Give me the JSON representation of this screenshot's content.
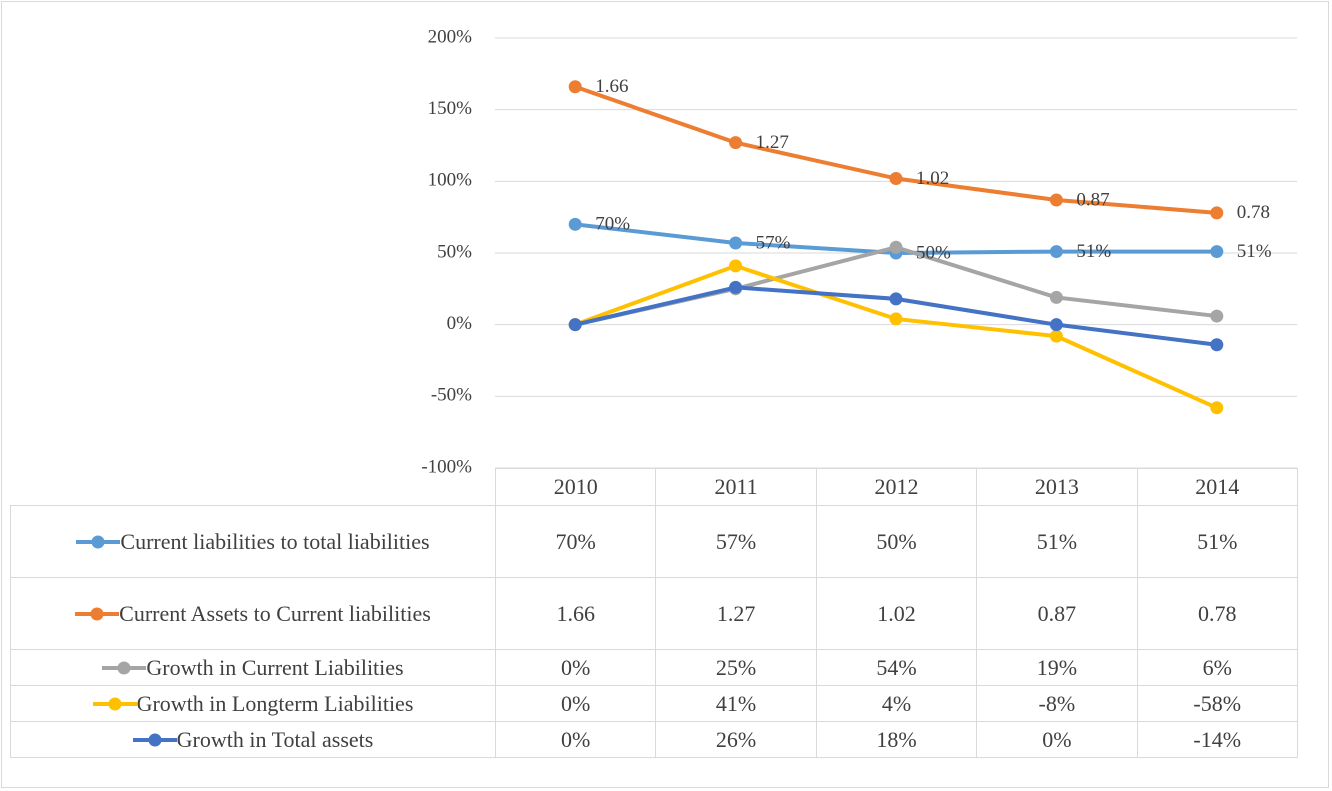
{
  "chart_data": {
    "type": "line",
    "categories": [
      "2010",
      "2011",
      "2012",
      "2013",
      "2014"
    ],
    "ylim": [
      -100,
      200
    ],
    "yticks": [
      {
        "value": -100,
        "label": "-100%"
      },
      {
        "value": -50,
        "label": "-50%"
      },
      {
        "value": 0,
        "label": "0%"
      },
      {
        "value": 50,
        "label": "50%"
      },
      {
        "value": 100,
        "label": "100%"
      },
      {
        "value": 150,
        "label": "150%"
      },
      {
        "value": 200,
        "label": "200%"
      }
    ],
    "grid": true,
    "legend": "table",
    "series": [
      {
        "name": "Current liabilities to total liabilities",
        "color": "#5b9bd5",
        "show_labels": true,
        "values": [
          70,
          57,
          50,
          51,
          51
        ],
        "value_labels": [
          "70%",
          "57%",
          "50%",
          "51%",
          "51%"
        ]
      },
      {
        "name": "Current Assets to Current liabilities",
        "color": "#ed7d31",
        "show_labels": true,
        "values": [
          166,
          127,
          102,
          87,
          78
        ],
        "value_labels": [
          "1.66",
          "1.27",
          "1.02",
          "0.87",
          "0.78"
        ]
      },
      {
        "name": "Growth in Current Liabilities",
        "color": "#a5a5a5",
        "show_labels": false,
        "values": [
          0,
          25,
          54,
          19,
          6
        ],
        "value_labels": [
          "0%",
          "25%",
          "54%",
          "19%",
          "6%"
        ]
      },
      {
        "name": "Growth in Longterm Liabilities",
        "color": "#ffc000",
        "show_labels": false,
        "values": [
          0,
          41,
          4,
          -8,
          -58
        ],
        "value_labels": [
          "0%",
          "41%",
          "4%",
          "-8%",
          "-58%"
        ]
      },
      {
        "name": "Growth in Total assets",
        "color": "#4472c4",
        "show_labels": false,
        "values": [
          0,
          26,
          18,
          0,
          -14
        ],
        "value_labels": [
          "0%",
          "26%",
          "18%",
          "0%",
          "-14%"
        ]
      }
    ]
  }
}
